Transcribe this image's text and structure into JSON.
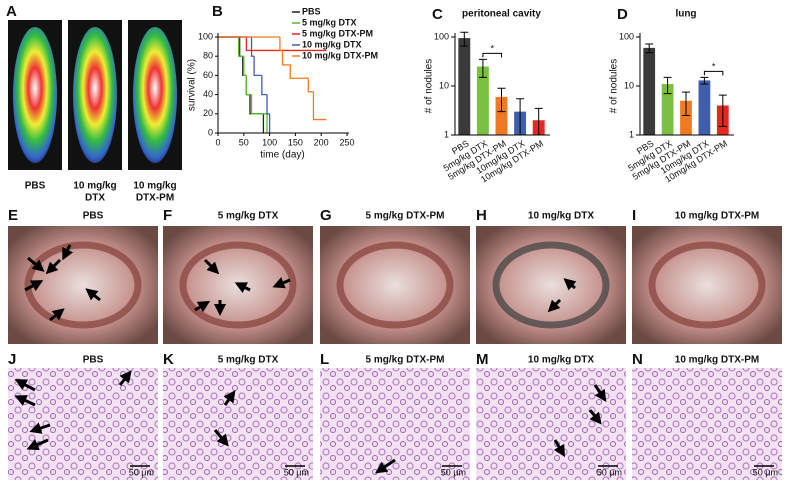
{
  "panel_a": {
    "letter": "A",
    "labels": [
      [
        "PBS"
      ],
      [
        "10 mg/kg",
        "DTX"
      ],
      [
        "10 mg/kg",
        "DTX-PM"
      ]
    ]
  },
  "chart_data": [
    {
      "type": "line",
      "letter": "B",
      "step": true,
      "xlabel": "time (day)",
      "ylabel": "survival (%)",
      "xlim": [
        0,
        250
      ],
      "xticks": [
        0,
        50,
        100,
        150,
        200,
        250
      ],
      "ylim": [
        0,
        100
      ],
      "yticks": [
        0,
        20,
        40,
        60,
        80,
        100
      ],
      "series": [
        {
          "name": "PBS",
          "color": "#222222",
          "x": [
            0,
            42,
            48,
            55,
            62,
            88
          ],
          "values": [
            100,
            80,
            60,
            40,
            20,
            0
          ]
        },
        {
          "name": "5 mg/kg DTX",
          "color": "#5cb82e",
          "x": [
            0,
            40,
            50,
            55,
            65,
            95
          ],
          "values": [
            100,
            80,
            60,
            40,
            20,
            0
          ]
        },
        {
          "name": "5 mg/kg DTX-PM",
          "color": "#e8261f",
          "x": [
            0,
            55,
            210
          ],
          "values": [
            100,
            86,
            86
          ]
        },
        {
          "name": "10 mg/kg DTX",
          "color": "#3f5eab",
          "x": [
            0,
            65,
            70,
            85,
            95,
            100
          ],
          "values": [
            100,
            80,
            60,
            40,
            20,
            0
          ]
        },
        {
          "name": "10 mg/kg DTX-PM",
          "color": "#f07a22",
          "x": [
            0,
            120,
            125,
            140,
            175,
            185,
            210
          ],
          "values": [
            100,
            86,
            71,
            57,
            43,
            14,
            14
          ]
        }
      ]
    },
    {
      "type": "bar",
      "letter": "C",
      "title": "peritoneal cavity",
      "ylabel": "# of nodules",
      "log": true,
      "ylim": [
        1,
        100
      ],
      "yticks": [
        1,
        10,
        100
      ],
      "categories": [
        "PBS",
        "5mg/kg DTX",
        "5mg/kg DTX-PM",
        "10mg/kg DTX",
        "10mg/kg DTX-PM"
      ],
      "colors": [
        "#3a3a3a",
        "#7ac143",
        "#f07a22",
        "#3f5eab",
        "#e8261f"
      ],
      "values": [
        95,
        25,
        6,
        3,
        2
      ],
      "errors": [
        30,
        10,
        3,
        2.5,
        1.5
      ],
      "annotations": [
        {
          "text": "*",
          "categories": [
            "5mg/kg DTX",
            "5mg/kg DTX-PM"
          ]
        }
      ]
    },
    {
      "type": "bar",
      "letter": "D",
      "title": "lung",
      "ylabel": "# of nodules",
      "log": true,
      "ylim": [
        1,
        100
      ],
      "yticks": [
        1,
        10,
        100
      ],
      "categories": [
        "PBS",
        "5mg/kg DTX",
        "5mg/kg DTX-PM",
        "10mg/kg DTX",
        "10mg/kg DTX-PM"
      ],
      "colors": [
        "#3a3a3a",
        "#7ac143",
        "#f07a22",
        "#3f5eab",
        "#e8261f"
      ],
      "values": [
        60,
        11,
        5,
        13,
        4
      ],
      "errors": [
        12,
        4,
        2.5,
        2,
        2.5
      ],
      "annotations": [
        {
          "text": "*",
          "categories": [
            "10mg/kg DTX",
            "10mg/kg DTX-PM"
          ]
        }
      ]
    }
  ],
  "row_gross": {
    "letters": [
      "E",
      "F",
      "G",
      "H",
      "I"
    ],
    "titles": [
      "PBS",
      "5 mg/kg DTX",
      "5 mg/kg DTX-PM",
      "10 mg/kg DTX",
      "10 mg/kg DTX-PM"
    ]
  },
  "row_histology": {
    "letters": [
      "J",
      "K",
      "L",
      "M",
      "N"
    ],
    "titles": [
      "PBS",
      "5 mg/kg DTX",
      "5 mg/kg DTX-PM",
      "10 mg/kg DTX",
      "10 mg/kg DTX-PM"
    ],
    "scale_bar": "50 μm"
  }
}
